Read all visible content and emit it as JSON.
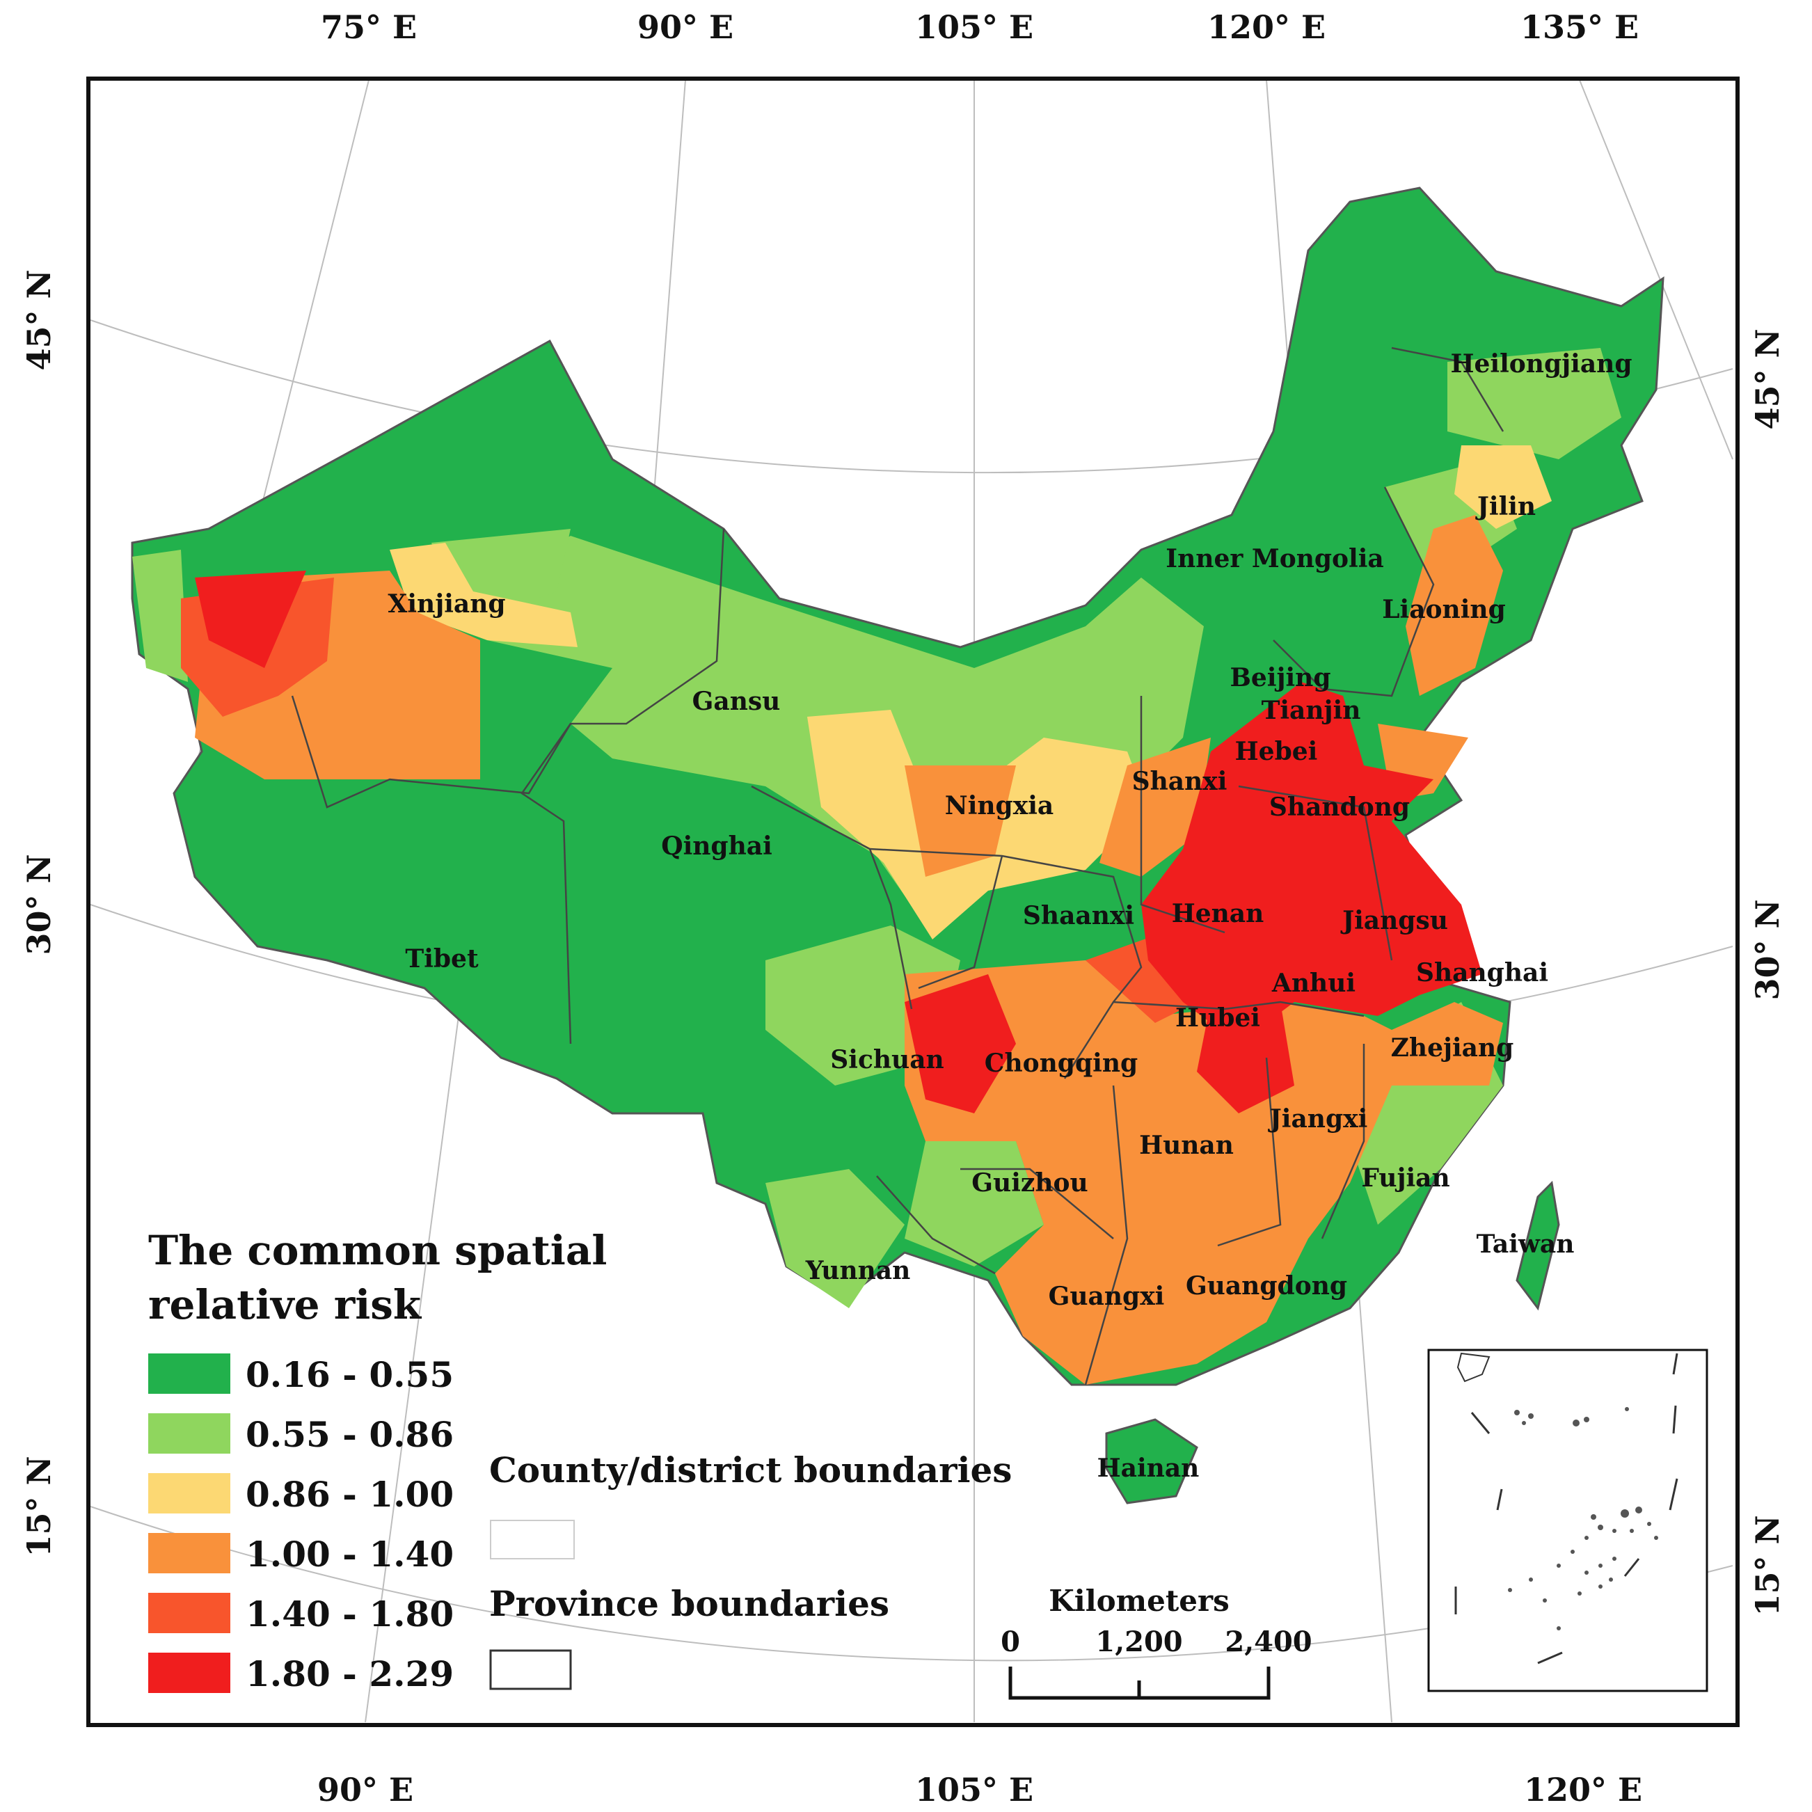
{
  "map": {
    "legend": {
      "title_line1": "The common spatial",
      "title_line2": "relative risk",
      "classes": [
        {
          "label": "0.16 - 0.55",
          "color": "#22b14c"
        },
        {
          "label": "0.55 - 0.86",
          "color": "#8fd65e"
        },
        {
          "label": "0.86 - 1.00",
          "color": "#fcd873"
        },
        {
          "label": "1.00 - 1.40",
          "color": "#f9913b"
        },
        {
          "label": "1.40 - 1.80",
          "color": "#f8552c"
        },
        {
          "label": "1.80 - 2.29",
          "color": "#f01e1e"
        }
      ]
    },
    "boundaries": {
      "county_label": "County/district boundaries",
      "province_label": "Province boundaries"
    },
    "scale_bar": {
      "title": "Kilometers",
      "ticks": [
        "0",
        "1,200",
        "2,400"
      ]
    },
    "graticule": {
      "top": [
        "75° E",
        "90° E",
        "105° E",
        "120° E",
        "135° E"
      ],
      "bottom": [
        "90° E",
        "105° E",
        "120° E"
      ],
      "left": [
        "45° N",
        "30° N",
        "15° N"
      ],
      "right": [
        "45° N",
        "30° N",
        "15° N"
      ]
    },
    "provinces": [
      "Heilongjiang",
      "Jilin",
      "Inner Mongolia",
      "Liaoning",
      "Xinjiang",
      "Gansu",
      "Beijing",
      "Tianjin",
      "Hebei",
      "Shanxi",
      "Ningxia",
      "Shandong",
      "Qinghai",
      "Shaanxi",
      "Henan",
      "Jiangsu",
      "Tibet",
      "Shanghai",
      "Anhui",
      "Hubei",
      "Sichuan",
      "Chongqing",
      "Zhejiang",
      "Jiangxi",
      "Hunan",
      "Fujian",
      "Guizhou",
      "Taiwan",
      "Yunnan",
      "Guangxi",
      "Guangdong",
      "Hainan"
    ]
  }
}
